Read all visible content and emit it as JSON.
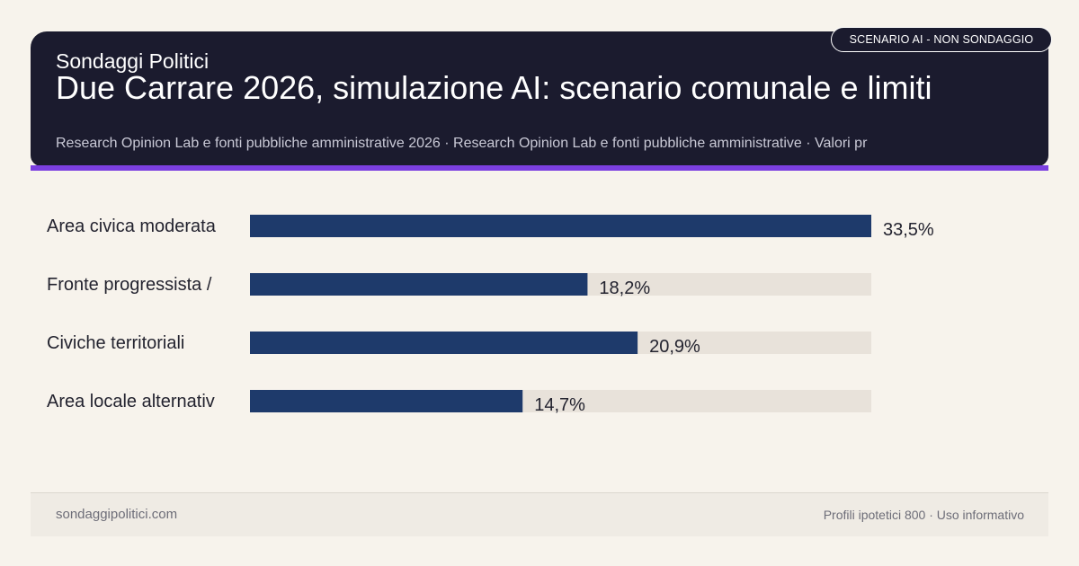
{
  "header": {
    "brand": "Sondaggi Politici",
    "title": "Due Carrare 2026, simulazione AI: scenario comunale e limiti",
    "subtitle": "Research Opinion Lab e fonti pubbliche amministrative 2026 · Research Opinion Lab e fonti pubbliche amministrative · Valori pr",
    "badge": "SCENARIO AI - NON SONDAGGIO"
  },
  "colors": {
    "header_bg": "#1b1b2e",
    "accent": "#7b3fe0",
    "bar": "#1e3a6b",
    "track": "#e8e2da",
    "background": "#f7f3ec"
  },
  "chart_data": {
    "type": "bar",
    "orientation": "horizontal",
    "categories": [
      "Area civica moderata",
      "Fronte progressista /",
      "Civiche territoriali",
      "Area locale alternativ"
    ],
    "values": [
      33.5,
      18.2,
      20.9,
      14.7
    ],
    "value_labels": [
      "33,5%",
      "18,2%",
      "20,9%",
      "14,7%"
    ],
    "unit": "%",
    "xlim": [
      0,
      33.5
    ],
    "grid": false,
    "legend": "none"
  },
  "footer": {
    "site": "sondaggipolitici.com",
    "note": "Profili ipotetici 800 · Uso informativo"
  }
}
